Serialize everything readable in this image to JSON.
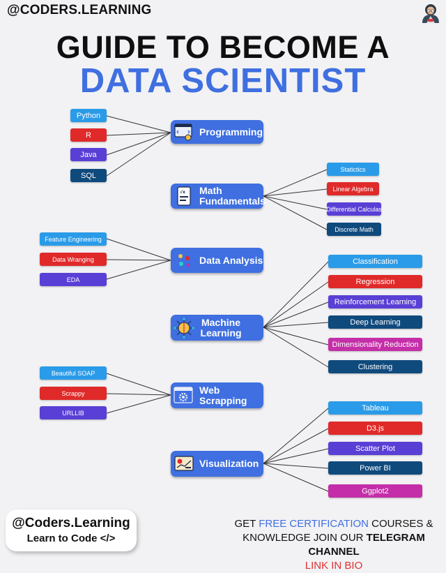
{
  "header": {
    "handle_prefix": "@CODERS",
    "handle_suffix": ".LEARNING"
  },
  "title": {
    "line1": "GUIDE TO BECOME A",
    "line2": "DATA SCIENTIST"
  },
  "colors": {
    "blue": "#3f6fe0",
    "lightblue": "#2a9be8",
    "red": "#e02a2a",
    "purple": "#5a3fd6",
    "navy": "#0f4a7d",
    "magenta": "#c42ea8"
  },
  "hubs": {
    "programming": "Programming",
    "math_l1": "Math",
    "math_l2": "Fundamentals",
    "analysis": "Data Analysis",
    "ml_l1": "Machine",
    "ml_l2": "Learning",
    "web_l1": "Web",
    "web_l2": "Scrapping",
    "viz": "Visualization"
  },
  "programming": [
    "Python",
    "R",
    "Java",
    "SQL"
  ],
  "math": [
    "Statictics",
    "Linear Algebra",
    "Differential Calculas",
    "Discrete Math"
  ],
  "analysis": [
    "Feature Engineering",
    "Data Wranging",
    "EDA"
  ],
  "ml": [
    "Classification",
    "Regression",
    "Reinforcement Learning",
    "Deep Learning",
    "Dimensionality Reduction",
    "Clustering"
  ],
  "web": [
    "Beautiful SOAP",
    "Scrappy",
    "URLLIB"
  ],
  "viz": [
    "Tableau",
    "D3.js",
    "Scatter Plot",
    "Power BI",
    "Ggplot2"
  ],
  "footer": {
    "card_line1": "@Coders.Learning",
    "card_line2": "Learn to Code </>",
    "t1": "GET ",
    "t2": "FREE CERTIFICATION",
    "t3": " COURSES &",
    "t4": "KNOWLEDGE JOIN OUR ",
    "t5": "TELEGRAM CHANNEL",
    "t6": "LINK IN BIO"
  }
}
